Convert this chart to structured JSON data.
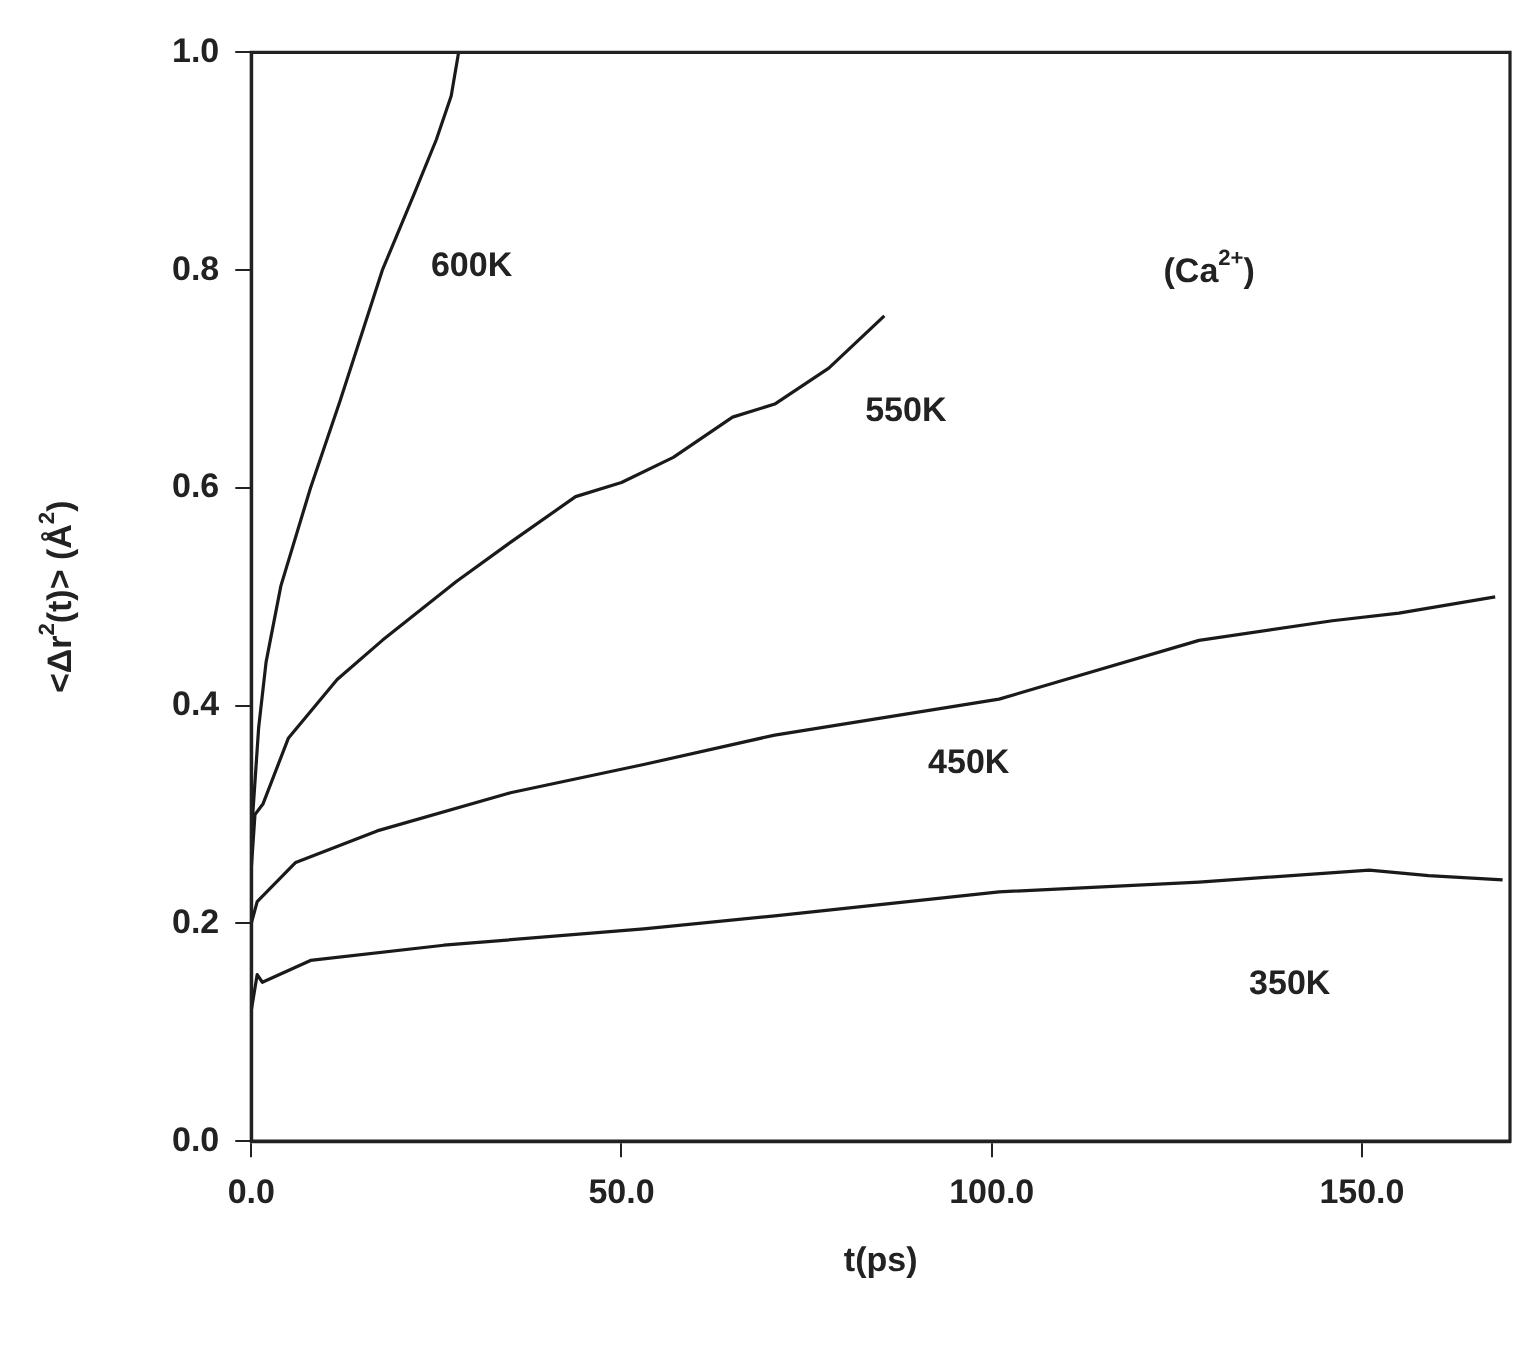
{
  "chart_data": {
    "type": "line",
    "xlabel": "t(ps)",
    "ylabel": "<Δr$^{2}$(t)> (Å$^{2}$)",
    "xlim": [
      0,
      170
    ],
    "ylim": [
      0,
      1
    ],
    "xticks": [
      {
        "value": 0,
        "label": "0.0"
      },
      {
        "value": 50,
        "label": "50.0"
      },
      {
        "value": 100,
        "label": "100.0"
      },
      {
        "value": 150,
        "label": "150.0"
      }
    ],
    "yticks": [
      {
        "value": 0,
        "label": "0.0"
      },
      {
        "value": 0.2,
        "label": "0.2"
      },
      {
        "value": 0.4,
        "label": "0.4"
      },
      {
        "value": 0.6,
        "label": "0.6"
      },
      {
        "value": 0.8,
        "label": "0.8"
      },
      {
        "value": 1,
        "label": "1.0"
      }
    ],
    "grid": false,
    "legend": false,
    "marker": "none",
    "line_style": "solid",
    "series": [
      {
        "name": "600K",
        "color": "#1a1a1a",
        "x": [
          0,
          1,
          2,
          4,
          8,
          12,
          17.7,
          22,
          25,
          27,
          28
        ],
        "values": [
          0.28,
          0.38,
          0.44,
          0.51,
          0.6,
          0.68,
          0.8,
          0.87,
          0.92,
          0.96,
          1.0
        ]
      },
      {
        "name": "550K",
        "color": "#1a1a1a",
        "x": [
          0,
          0.5,
          1.6,
          5,
          11.6,
          17.7,
          27.7,
          35,
          43.8,
          50,
          57,
          65,
          70.7,
          78,
          85.5
        ],
        "values": [
          0.25,
          0.3,
          0.31,
          0.37,
          0.424,
          0.46,
          0.514,
          0.55,
          0.592,
          0.605,
          0.628,
          0.665,
          0.677,
          0.71,
          0.758
        ]
      },
      {
        "name": "450K",
        "color": "#1a1a1a",
        "x": [
          0,
          0.8,
          6,
          17,
          35,
          53,
          70.7,
          101,
          110,
          128,
          146,
          155,
          168
        ],
        "values": [
          0.2,
          0.22,
          0.256,
          0.285,
          0.32,
          0.346,
          0.373,
          0.406,
          0.424,
          0.46,
          0.478,
          0.485,
          0.5
        ]
      },
      {
        "name": "350K",
        "color": "#1a1a1a",
        "x": [
          0,
          0.8,
          1.5,
          8,
          26,
          53,
          70.7,
          101,
          128,
          151,
          159,
          169
        ],
        "values": [
          0.12,
          0.153,
          0.146,
          0.166,
          0.18,
          0.195,
          0.207,
          0.229,
          0.238,
          0.249,
          0.244,
          0.24
        ]
      }
    ],
    "annotations": [
      "(Ca$^{2+}$)"
    ]
  }
}
